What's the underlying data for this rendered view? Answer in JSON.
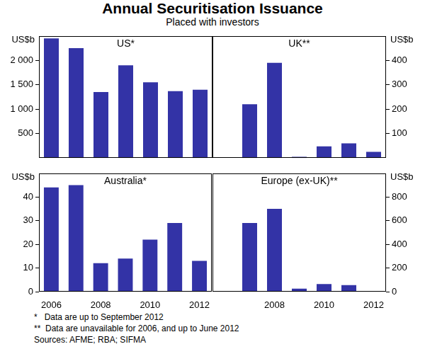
{
  "title": "Annual Securitisation Issuance",
  "subtitle": "Placed with investors",
  "notes": [
    "*   Data are up to September 2012",
    "**  Data are unavailable for 2006, and up to June 2012",
    "Sources: AFME; RBA; SIFMA"
  ],
  "chart_data": [
    {
      "type": "bar",
      "title": "US*",
      "ylabel": "US$b",
      "categories": [
        null,
        null,
        null,
        null,
        null,
        null,
        null
      ],
      "values": [
        2450,
        2250,
        1350,
        1900,
        1550,
        1370,
        1400
      ],
      "color": "#3333a6",
      "ylim": [
        0,
        2500
      ],
      "yticks": [
        500,
        {
          "value": 1000,
          "label": "1 000"
        },
        {
          "value": 1500,
          "label": "1 500"
        },
        {
          "value": 2000,
          "label": "2 000"
        }
      ],
      "grid": false,
      "tick_labels": "y"
    },
    {
      "type": "bar",
      "title": "UK**",
      "ylabel": "US$b",
      "categories": [
        null,
        null,
        null,
        null,
        null,
        null,
        null
      ],
      "values": [
        null,
        220,
        390,
        5,
        48,
        60,
        25
      ],
      "color": "#3333a6",
      "ylim": [
        0,
        500
      ],
      "yticks": [
        100,
        200,
        300,
        400
      ],
      "grid": false,
      "tick_labels": "y"
    },
    {
      "type": "bar",
      "title": "Australia*",
      "ylabel": "US$b",
      "categories": [
        "2006",
        null,
        "2008",
        null,
        "2010",
        null,
        "2012"
      ],
      "values": [
        44,
        45,
        12,
        14,
        22,
        29,
        13
      ],
      "color": "#3333a6",
      "ylim": [
        0,
        50
      ],
      "yticks": [
        0,
        10,
        20,
        30,
        40
      ],
      "grid": false
    },
    {
      "type": "bar",
      "title": "Europe (ex-UK)**",
      "ylabel": "US$b",
      "categories": [
        null,
        null,
        "2008",
        null,
        "2010",
        null,
        "2012"
      ],
      "values": [
        null,
        580,
        700,
        25,
        65,
        55,
        5
      ],
      "color": "#3333a6",
      "ylim": [
        0,
        1000
      ],
      "yticks": [
        0,
        200,
        400,
        600,
        800
      ],
      "grid": false
    }
  ]
}
